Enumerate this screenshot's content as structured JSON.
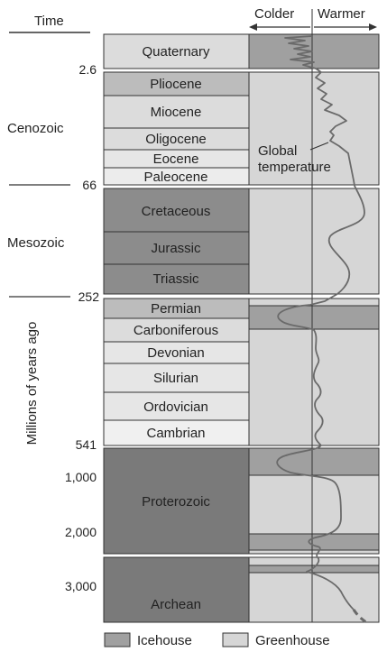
{
  "header": {
    "time_label": "Time",
    "colder_label": "Colder",
    "warmer_label": "Warmer"
  },
  "axis_label": "Millions of years ago",
  "eras": [
    {
      "name": "Cenozoic"
    },
    {
      "name": "Mesozoic"
    }
  ],
  "ticks": [
    "2.6",
    "66",
    "252",
    "541",
    "1,000",
    "2,000",
    "3,000"
  ],
  "periods": [
    {
      "name": "Quaternary",
      "shade": "light"
    },
    {
      "name": "Pliocene",
      "shade": "medium"
    },
    {
      "name": "Miocene",
      "shade": "light"
    },
    {
      "name": "Oligocene",
      "shade": "light"
    },
    {
      "name": "Eocene",
      "shade": "light"
    },
    {
      "name": "Paleocene",
      "shade": "lighter"
    },
    {
      "name": "Cretaceous",
      "shade": "dark"
    },
    {
      "name": "Jurassic",
      "shade": "dark"
    },
    {
      "name": "Triassic",
      "shade": "dark"
    },
    {
      "name": "Permian",
      "shade": "medium"
    },
    {
      "name": "Carboniferous",
      "shade": "light"
    },
    {
      "name": "Devonian",
      "shade": "lighter"
    },
    {
      "name": "Silurian",
      "shade": "lighter"
    },
    {
      "name": "Ordovician",
      "shade": "lighter"
    },
    {
      "name": "Cambrian",
      "shade": "lightest"
    },
    {
      "name": "Proterozoic",
      "shade": "darkest"
    },
    {
      "name": "Archean",
      "shade": "darkest"
    }
  ],
  "curve_label": [
    "Global",
    "temperature"
  ],
  "legend": {
    "icehouse_label": "Icehouse",
    "greenhouse_label": "Greenhouse"
  },
  "colors": {
    "icehouse": "#a0a0a0",
    "greenhouse": "#d6d6d6",
    "dark_block": "#8c8c8c",
    "darkest_block": "#7a7a7a",
    "medium_block": "#bcbcbc",
    "light_block": "#dcdcdc",
    "lighter_block": "#e6e6e6",
    "lightest_block": "#f0f0f0",
    "curve": "#6a6a6a"
  }
}
